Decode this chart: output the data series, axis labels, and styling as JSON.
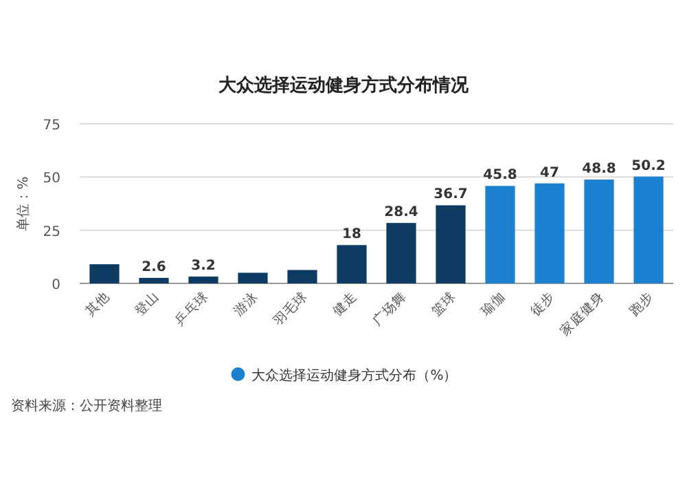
{
  "chart_data": {
    "type": "bar",
    "title": "大众选择运动健身方式分布情况",
    "ylabel": "单位：%",
    "categories": [
      "其他",
      "登山",
      "乒乓球",
      "游泳",
      "羽毛球",
      "健走",
      "广场舞",
      "篮球",
      "瑜伽",
      "徒步",
      "家庭健身",
      "跑步"
    ],
    "series": [
      {
        "name": "大众选择运动健身方式分布（%）",
        "color": "#1a80cf",
        "colors": [
          "#0d3a60",
          "#0d3a60",
          "#0d3a60",
          "#0d3a60",
          "#0d3a60",
          "#0d3a60",
          "#0d3a60",
          "#0d3a60",
          "#1a80cf",
          "#1a80cf",
          "#1a80cf",
          "#1a80cf"
        ],
        "values": [
          9,
          2.6,
          3.2,
          5,
          6.3,
          18,
          28.4,
          36.7,
          45.8,
          47,
          48.8,
          50.2
        ],
        "value_labels": [
          null,
          "2.6",
          "3.2",
          null,
          null,
          "18",
          "28.4",
          "36.7",
          "45.8",
          "47",
          "48.8",
          "50.2"
        ]
      }
    ],
    "ylim": [
      0,
      75
    ],
    "yticks": [
      0,
      25,
      50,
      75
    ],
    "grid": "y",
    "legend": "bottom",
    "annotations": [
      "资料来源：公开资料整理"
    ]
  }
}
